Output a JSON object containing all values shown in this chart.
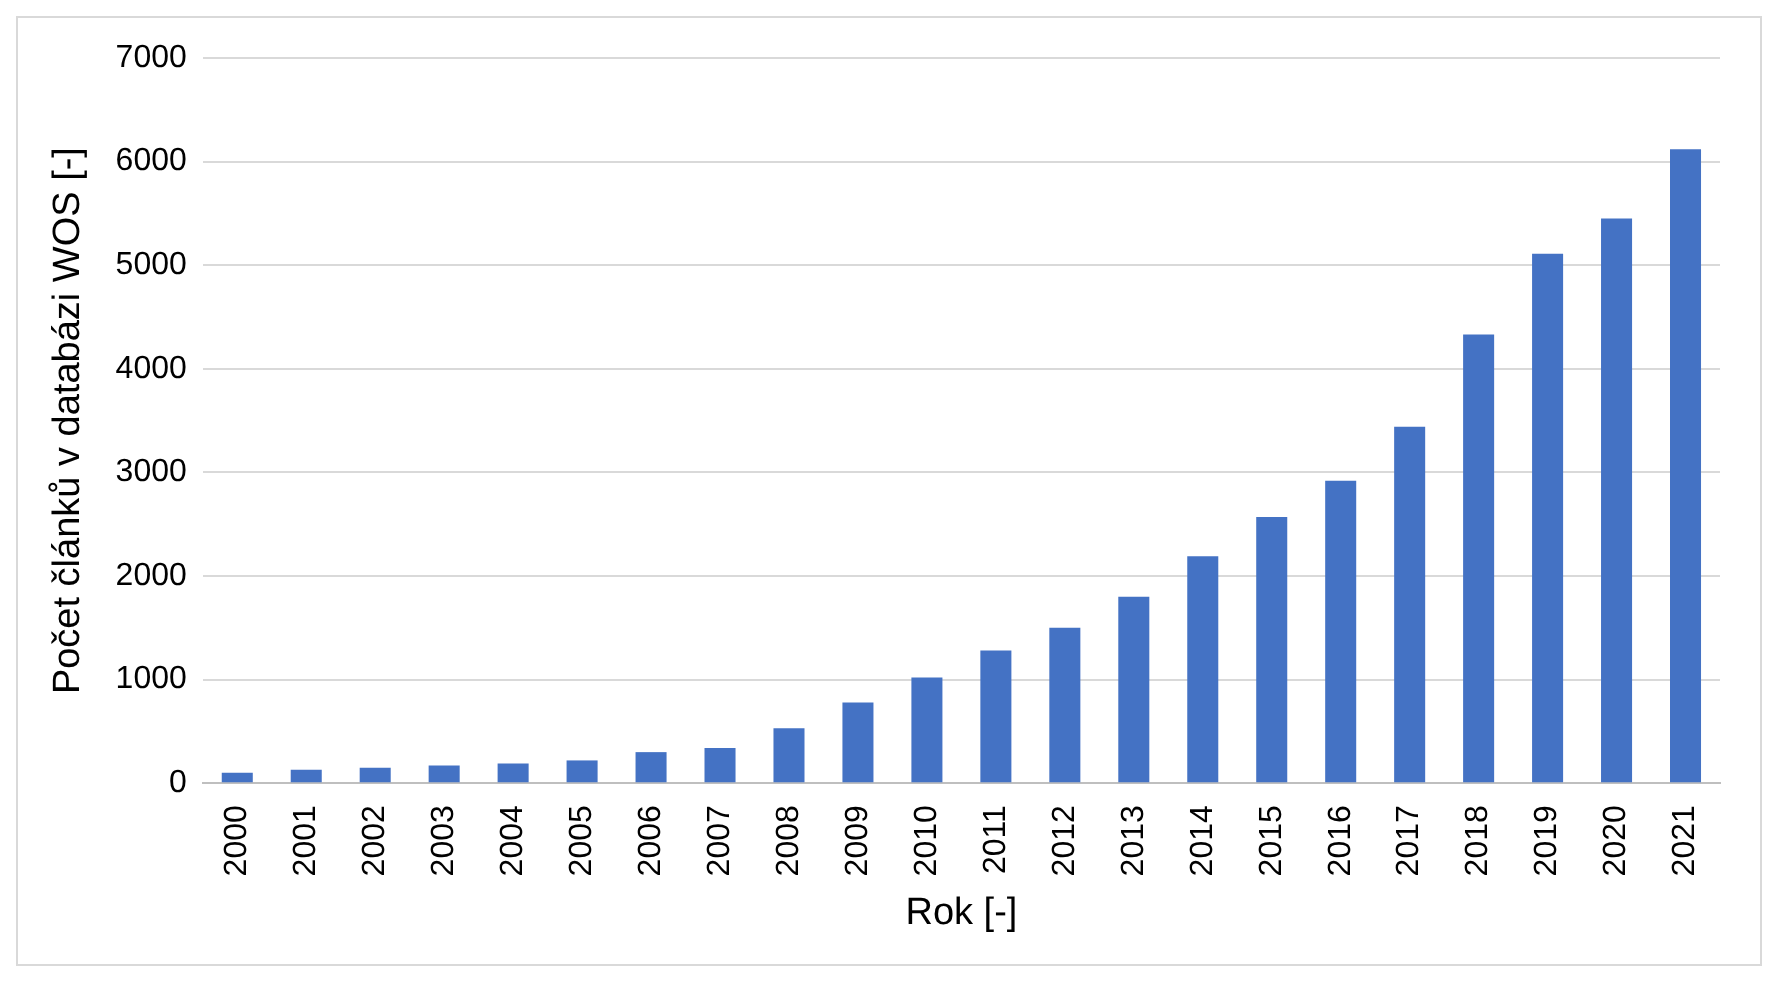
{
  "chart_data": {
    "type": "bar",
    "xlabel": "Rok [-]",
    "ylabel": "Počet článků v databázi WOS [-]",
    "categories": [
      "2000",
      "2001",
      "2002",
      "2003",
      "2004",
      "2005",
      "2006",
      "2007",
      "2008",
      "2009",
      "2010",
      "2011",
      "2012",
      "2013",
      "2014",
      "2015",
      "2016",
      "2017",
      "2018",
      "2019",
      "2020",
      "2021"
    ],
    "values": [
      100,
      130,
      150,
      170,
      190,
      220,
      300,
      340,
      530,
      780,
      1020,
      1280,
      1500,
      1800,
      2190,
      2570,
      2920,
      3440,
      4330,
      5110,
      5450,
      6120
    ],
    "color": "#4472c4",
    "ylim": [
      0,
      7000
    ],
    "yticks": [
      0,
      1000,
      2000,
      3000,
      4000,
      5000,
      6000,
      7000
    ],
    "grid": "y",
    "legend": false
  }
}
